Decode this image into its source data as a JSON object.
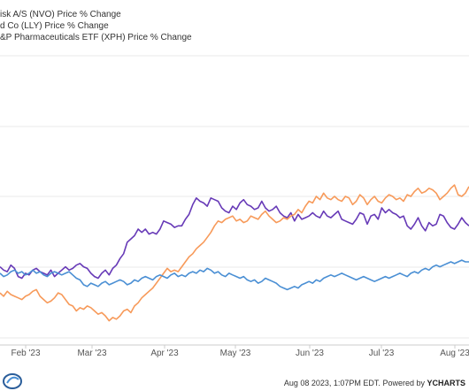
{
  "legend": [
    {
      "label": "isk A/S (NVO) Price % Change",
      "color": "#673ab7"
    },
    {
      "label": "d Co (LLY) Price % Change",
      "color": "#f79a5a"
    },
    {
      "label": "&P Pharmaceuticals ETF (XPH) Price % Change",
      "color": "#4a8fd4"
    }
  ],
  "footer": {
    "timestamp": "Aug 08 2023, 1:07PM EDT.",
    "powered": "Powered by",
    "brand": "YCHARTS"
  },
  "chart_data": {
    "type": "line",
    "x_ticks": [
      "Feb '23",
      "Mar '23",
      "Apr '23",
      "May '23",
      "Jun '23",
      "Jul '23",
      "Aug '23"
    ],
    "ylim": [
      0,
      1
    ],
    "grid": true,
    "legend_position": "top-left",
    "series": [
      {
        "name": "isk A/S (NVO) Price % Change",
        "color": "#673ab7",
        "values": [
          0.37,
          0.35,
          0.34,
          0.38,
          0.36,
          0.31,
          0.3,
          0.33,
          0.32,
          0.35,
          0.36,
          0.34,
          0.33,
          0.32,
          0.35,
          0.31,
          0.33,
          0.35,
          0.37,
          0.35,
          0.36,
          0.38,
          0.39,
          0.37,
          0.36,
          0.33,
          0.31,
          0.3,
          0.33,
          0.35,
          0.32,
          0.36,
          0.38,
          0.42,
          0.45,
          0.52,
          0.54,
          0.56,
          0.6,
          0.58,
          0.6,
          0.57,
          0.58,
          0.57,
          0.6,
          0.65,
          0.64,
          0.63,
          0.61,
          0.62,
          0.62,
          0.66,
          0.69,
          0.75,
          0.79,
          0.77,
          0.76,
          0.74,
          0.79,
          0.78,
          0.77,
          0.73,
          0.71,
          0.7,
          0.74,
          0.72,
          0.76,
          0.78,
          0.75,
          0.74,
          0.72,
          0.73,
          0.77,
          0.73,
          0.71,
          0.72,
          0.74,
          0.7,
          0.68,
          0.67,
          0.7,
          0.65,
          0.69,
          0.66,
          0.67,
          0.68,
          0.7,
          0.68,
          0.67,
          0.71,
          0.68,
          0.67,
          0.69,
          0.71,
          0.66,
          0.65,
          0.64,
          0.63,
          0.66,
          0.7,
          0.69,
          0.63,
          0.68,
          0.69,
          0.66,
          0.73,
          0.7,
          0.72,
          0.7,
          0.69,
          0.67,
          0.68,
          0.62,
          0.6,
          0.63,
          0.67,
          0.62,
          0.59,
          0.64,
          0.62,
          0.63,
          0.69,
          0.68,
          0.64,
          0.61,
          0.6,
          0.63,
          0.67,
          0.64,
          0.62
        ]
      },
      {
        "name": "d Co (LLY) Price % Change",
        "color": "#f79a5a",
        "values": [
          0.21,
          0.19,
          0.22,
          0.2,
          0.19,
          0.18,
          0.17,
          0.19,
          0.2,
          0.22,
          0.23,
          0.19,
          0.17,
          0.15,
          0.16,
          0.18,
          0.21,
          0.2,
          0.17,
          0.14,
          0.13,
          0.1,
          0.12,
          0.11,
          0.13,
          0.12,
          0.1,
          0.08,
          0.09,
          0.07,
          0.04,
          0.06,
          0.05,
          0.07,
          0.1,
          0.11,
          0.09,
          0.13,
          0.15,
          0.18,
          0.2,
          0.22,
          0.24,
          0.27,
          0.3,
          0.33,
          0.36,
          0.34,
          0.35,
          0.34,
          0.37,
          0.4,
          0.43,
          0.45,
          0.48,
          0.5,
          0.52,
          0.55,
          0.58,
          0.62,
          0.65,
          0.64,
          0.66,
          0.67,
          0.68,
          0.65,
          0.66,
          0.64,
          0.65,
          0.68,
          0.67,
          0.66,
          0.69,
          0.71,
          0.68,
          0.66,
          0.64,
          0.65,
          0.67,
          0.66,
          0.68,
          0.69,
          0.72,
          0.7,
          0.74,
          0.77,
          0.76,
          0.8,
          0.78,
          0.82,
          0.79,
          0.78,
          0.8,
          0.78,
          0.77,
          0.8,
          0.79,
          0.75,
          0.77,
          0.81,
          0.79,
          0.75,
          0.78,
          0.8,
          0.77,
          0.76,
          0.79,
          0.81,
          0.8,
          0.78,
          0.79,
          0.77,
          0.81,
          0.8,
          0.83,
          0.85,
          0.82,
          0.83,
          0.85,
          0.84,
          0.82,
          0.78,
          0.8,
          0.82,
          0.85,
          0.87,
          0.81,
          0.8,
          0.82,
          0.86
        ]
      },
      {
        "name": "&P Pharmaceuticals ETF (XPH) Price % Change",
        "color": "#4a8fd4",
        "values": [
          0.33,
          0.31,
          0.32,
          0.34,
          0.35,
          0.33,
          0.34,
          0.32,
          0.33,
          0.35,
          0.33,
          0.34,
          0.32,
          0.31,
          0.33,
          0.34,
          0.33,
          0.32,
          0.33,
          0.34,
          0.32,
          0.3,
          0.29,
          0.26,
          0.25,
          0.27,
          0.26,
          0.25,
          0.27,
          0.28,
          0.26,
          0.27,
          0.28,
          0.29,
          0.28,
          0.26,
          0.27,
          0.29,
          0.28,
          0.3,
          0.31,
          0.3,
          0.29,
          0.31,
          0.32,
          0.31,
          0.3,
          0.32,
          0.33,
          0.31,
          0.32,
          0.31,
          0.33,
          0.34,
          0.33,
          0.35,
          0.34,
          0.36,
          0.35,
          0.33,
          0.34,
          0.32,
          0.31,
          0.33,
          0.32,
          0.31,
          0.3,
          0.31,
          0.29,
          0.28,
          0.29,
          0.27,
          0.28,
          0.3,
          0.29,
          0.28,
          0.27,
          0.25,
          0.24,
          0.23,
          0.24,
          0.25,
          0.24,
          0.26,
          0.27,
          0.28,
          0.27,
          0.29,
          0.28,
          0.3,
          0.31,
          0.32,
          0.31,
          0.32,
          0.33,
          0.32,
          0.31,
          0.3,
          0.29,
          0.3,
          0.31,
          0.3,
          0.29,
          0.28,
          0.29,
          0.3,
          0.31,
          0.3,
          0.31,
          0.32,
          0.33,
          0.32,
          0.31,
          0.33,
          0.34,
          0.33,
          0.35,
          0.36,
          0.35,
          0.37,
          0.38,
          0.37,
          0.38,
          0.39,
          0.4,
          0.39,
          0.4,
          0.41,
          0.4,
          0.4
        ]
      }
    ]
  }
}
